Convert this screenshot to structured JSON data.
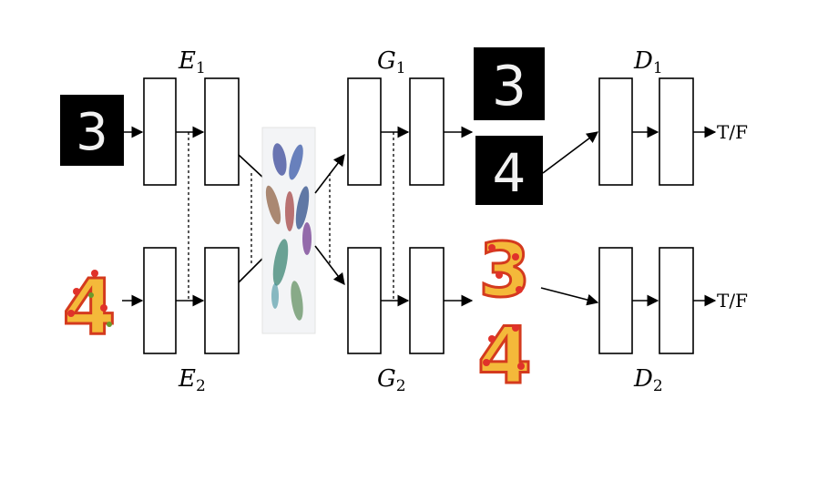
{
  "labels": {
    "e1": {
      "main": "E",
      "sub": "1"
    },
    "e2": {
      "main": "E",
      "sub": "2"
    },
    "g1": {
      "main": "G",
      "sub": "1"
    },
    "g2": {
      "main": "G",
      "sub": "2"
    },
    "d1": {
      "main": "D",
      "sub": "1"
    },
    "d2": {
      "main": "D",
      "sub": "2"
    }
  },
  "outputs": {
    "top": "T/F",
    "bottom": "T/F"
  },
  "images": {
    "input_mnist_digit": "3",
    "input_pizza_digit": "4",
    "gen_mnist_top": "3",
    "gen_mnist_bottom": "4",
    "gen_pizza_top": "3",
    "gen_pizza_bottom": "4"
  },
  "colors": {
    "mnist_bg": "#000000",
    "pizza_crust": "#f4b93a",
    "pizza_sauce": "#d43a1e",
    "pizza_topping": "#e0322a",
    "latent_clusters": [
      "#3b4a9a",
      "#8a5a3a",
      "#2f7d6b",
      "#6a2f8a",
      "#3f8f9f",
      "#4a6aa0",
      "#a06a4a",
      "#5a8a5a"
    ]
  }
}
